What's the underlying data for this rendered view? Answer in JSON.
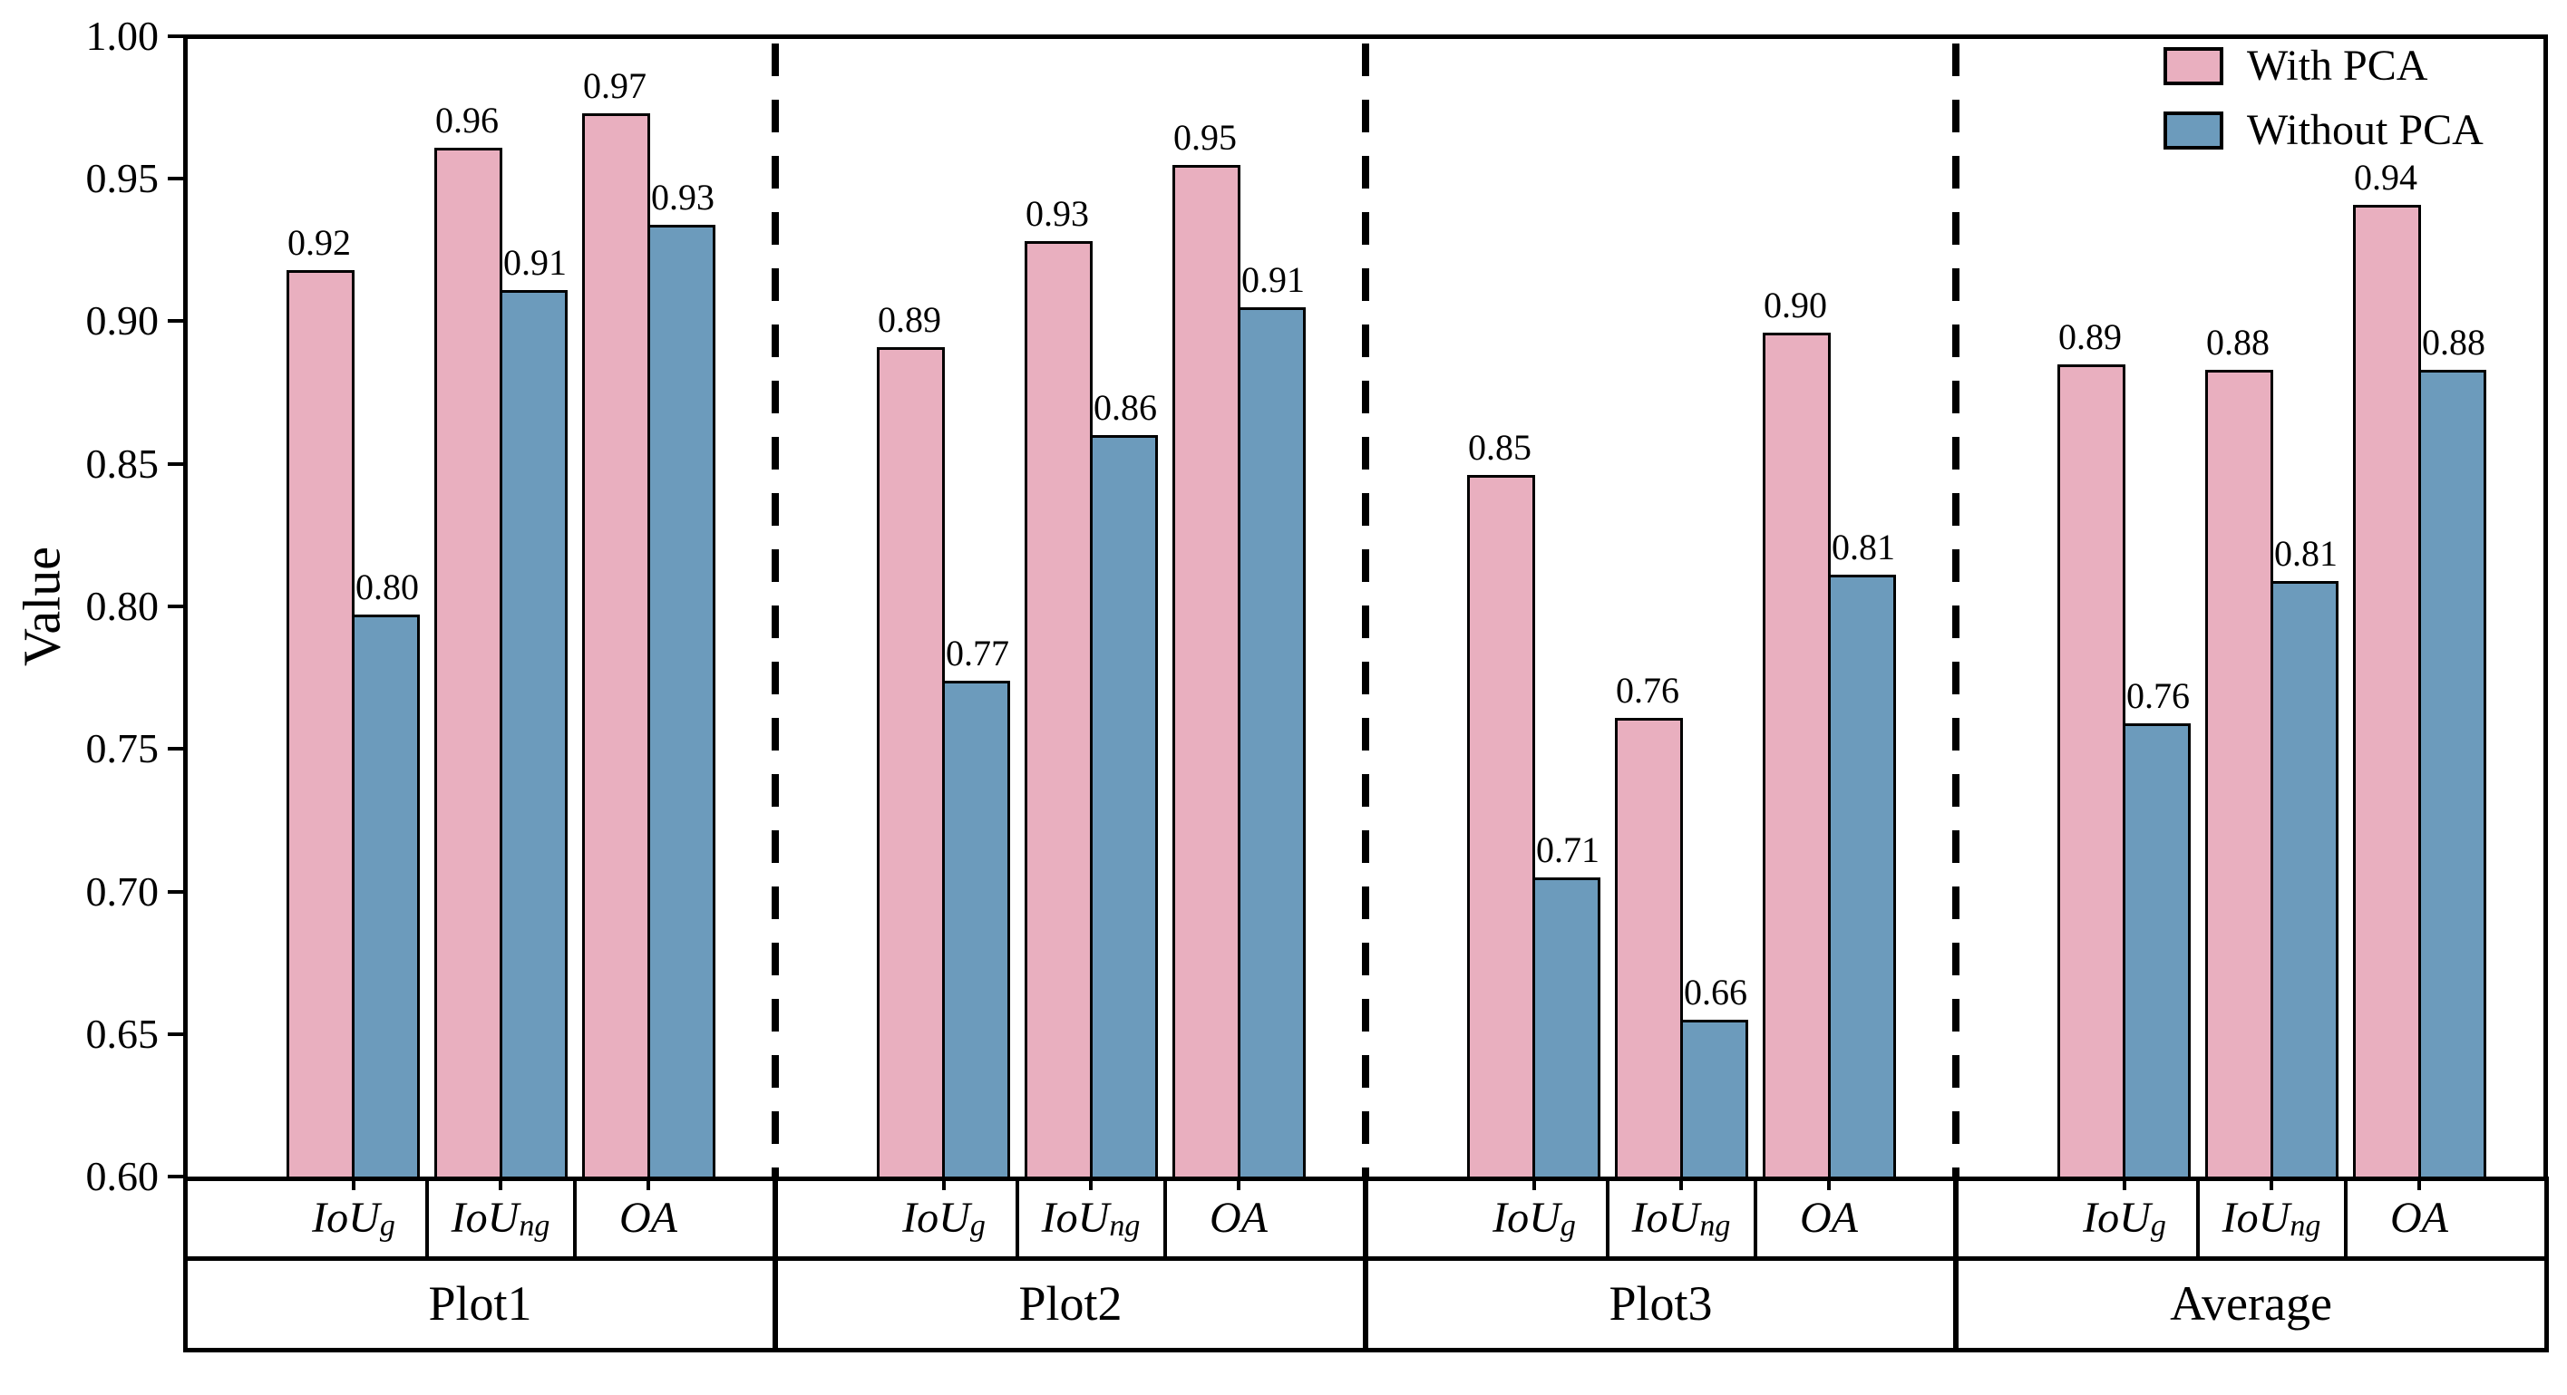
{
  "chart_data": {
    "type": "bar",
    "title": "",
    "xlabel": "",
    "ylabel": "Value",
    "ylim": [
      0.6,
      1.0
    ],
    "yticks": [
      "1.00",
      "0.95",
      "0.90",
      "0.85",
      "0.80",
      "0.75",
      "0.70",
      "0.65",
      "0.60"
    ],
    "ytick_values": [
      1.0,
      0.95,
      0.9,
      0.85,
      0.8,
      0.75,
      0.7,
      0.65,
      0.6
    ],
    "grid": false,
    "legend_position": "upper right",
    "groups": [
      "Plot1",
      "Plot2",
      "Plot3",
      "Average"
    ],
    "metrics": [
      {
        "base": "IoU",
        "sub": "g"
      },
      {
        "base": "IoU",
        "sub": "ng"
      },
      {
        "base": "OA",
        "sub": ""
      }
    ],
    "group_separator_style": "thick dashed vertical lines between groups",
    "series": [
      {
        "name": "With PCA",
        "color": "#e9afbf",
        "values": [
          0.918,
          0.961,
          0.973,
          0.891,
          0.928,
          0.955,
          0.846,
          0.761,
          0.896,
          0.885,
          0.883,
          0.941
        ],
        "bar_labels": [
          "0.92",
          "0.96",
          "0.97",
          "0.89",
          "0.93",
          "0.95",
          "0.85",
          "0.76",
          "0.90",
          "0.89",
          "0.88",
          "0.94"
        ]
      },
      {
        "name": "Without PCA",
        "color": "#6c9bbc",
        "values": [
          0.797,
          0.911,
          0.934,
          0.774,
          0.86,
          0.905,
          0.705,
          0.655,
          0.811,
          0.759,
          0.809,
          0.883
        ],
        "bar_labels": [
          "0.80",
          "0.91",
          "0.93",
          "0.77",
          "0.86",
          "0.91",
          "0.71",
          "0.66",
          "0.81",
          "0.76",
          "0.81",
          "0.88"
        ]
      }
    ],
    "bar_edge_color": "#000000",
    "background_color": "#ffffff"
  }
}
